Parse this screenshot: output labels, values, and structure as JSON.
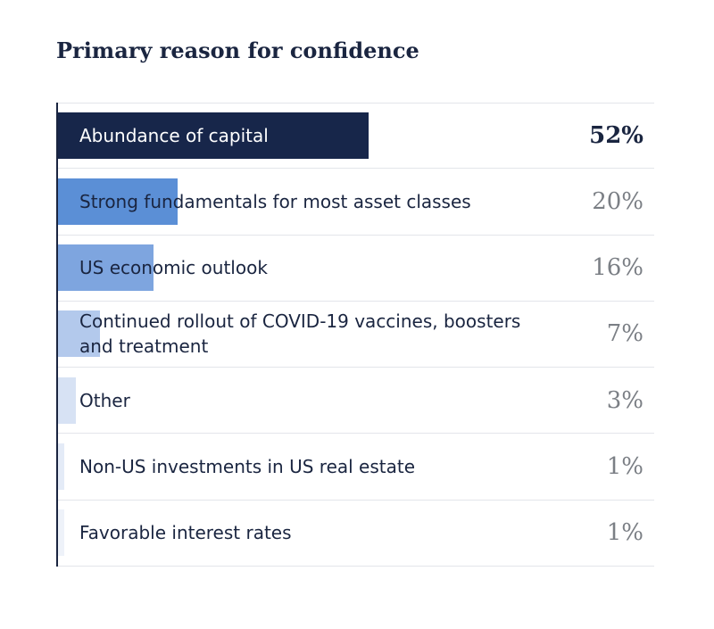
{
  "title": "Primary reason for confidence",
  "chart_data": {
    "type": "bar",
    "orientation": "horizontal",
    "title": "Primary reason for confidence",
    "xlabel": "",
    "ylabel": "",
    "unit": "%",
    "xlim": [
      0,
      100
    ],
    "grid": false,
    "categories": [
      "Abundance of capital",
      "Strong fundamentals for most asset classes",
      "US economic outlook",
      "Continued rollout of COVID-19 vaccines, boosters and treatment",
      "Other",
      "Non-US investments in US real estate",
      "Favorable interest rates"
    ],
    "values": [
      52,
      20,
      16,
      7,
      3,
      1,
      1
    ],
    "value_labels": [
      "52%",
      "20%",
      "16%",
      "7%",
      "3%",
      "1%",
      "1%"
    ],
    "bar_colors": [
      "#17264a",
      "#5b8fd6",
      "#7ea5df",
      "#b3c9ec",
      "#d7e2f4",
      "#e4ebf7",
      "#eef2f9"
    ]
  }
}
